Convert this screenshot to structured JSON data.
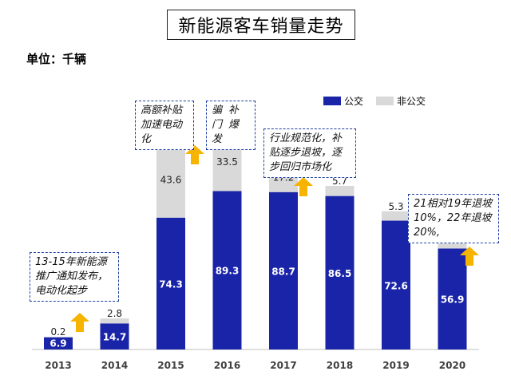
{
  "title": "新能源客车销量走势",
  "unit_label": "单位：千辆",
  "legend": [
    {
      "label": "公交",
      "color": "#1a24a8"
    },
    {
      "label": "非公交",
      "color": "#d9d9d9"
    }
  ],
  "annotations": {
    "note_2013_2015": "13-15年新能源推广通知发布，电动化起步",
    "note_2015": "高额补贴加速电动化",
    "note_2016": "骗补门爆发",
    "note_2017": "行业规范化，补贴逐步退坡，逐步回归市场化",
    "note_2020": "21相对19年退坡10%，22年退坡20%,"
  },
  "chart_data": {
    "type": "bar",
    "stacked": true,
    "categories": [
      "2013",
      "2014",
      "2015",
      "2016",
      "2017",
      "2018",
      "2019",
      "2020"
    ],
    "series": [
      {
        "name": "公交",
        "color": "#1a24a8",
        "values": [
          6.9,
          14.7,
          74.3,
          89.3,
          88.7,
          86.5,
          72.6,
          56.9
        ]
      },
      {
        "name": "非公交",
        "color": "#d9d9d9",
        "values": [
          0.2,
          2.8,
          43.6,
          33.5,
          17.2,
          5.7,
          5.3,
          5.5
        ]
      }
    ],
    "title": "新能源客车销量走势",
    "ylabel": "",
    "xlabel": "",
    "ylim": [
      0,
      125
    ],
    "grid": false,
    "legend_position": "top-right"
  }
}
